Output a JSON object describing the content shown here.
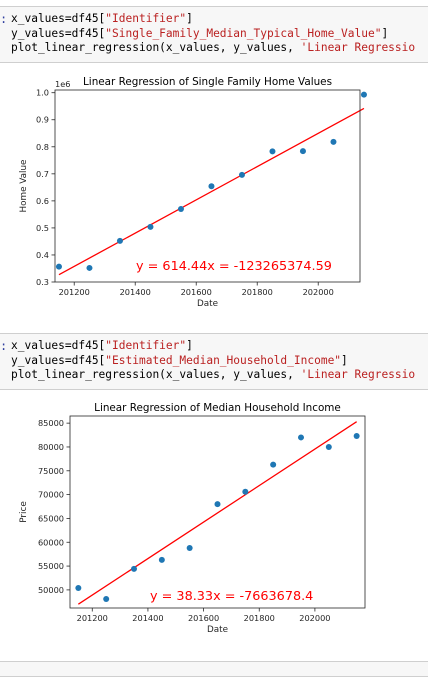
{
  "cells": [
    {
      "prompt": ":",
      "lines": [
        [
          {
            "t": "x_values=df45[",
            "c": ""
          },
          {
            "t": "\"Identifier\"",
            "c": "str"
          },
          {
            "t": "]",
            "c": ""
          }
        ],
        [
          {
            "t": "y_values=df45[",
            "c": ""
          },
          {
            "t": "\"Single_Family_Median_Typical_Home_Value\"",
            "c": "str"
          },
          {
            "t": "]",
            "c": ""
          }
        ],
        [
          {
            "t": "plot_linear_regression(x_values, y_values, ",
            "c": ""
          },
          {
            "t": "'Linear Regressio",
            "c": "str"
          }
        ]
      ]
    },
    {
      "prompt": ":",
      "lines": [
        [
          {
            "t": "x_values=df45[",
            "c": ""
          },
          {
            "t": "\"Identifier\"",
            "c": "str"
          },
          {
            "t": "]",
            "c": ""
          }
        ],
        [
          {
            "t": "y_values=df45[",
            "c": ""
          },
          {
            "t": "\"Estimated_Median_Household_Income\"",
            "c": "str"
          },
          {
            "t": "]",
            "c": ""
          }
        ],
        [
          {
            "t": "plot_linear_regression(x_values, y_values, ",
            "c": ""
          },
          {
            "t": "'Linear Regressio",
            "c": "str"
          }
        ]
      ]
    }
  ],
  "chart_data": [
    {
      "type": "scatter",
      "title": "Linear Regression of Single Family Home Values",
      "xlabel": "Date",
      "ylabel": "Home Value",
      "y_exponent_label": "1e6",
      "xlim": [
        201137,
        202137
      ],
      "ylim": [
        0.3,
        1.01
      ],
      "xticks": [
        201200,
        201400,
        201600,
        201800,
        202000
      ],
      "xtick_labels": [
        "201200",
        "201400",
        "201600",
        "201800",
        "202000"
      ],
      "yticks": [
        0.3,
        0.4,
        0.5,
        0.6,
        0.7,
        0.8,
        0.9,
        1.0
      ],
      "ytick_labels": [
        "0.3",
        "0.4",
        "0.5",
        "0.6",
        "0.7",
        "0.8",
        "0.9",
        "1.0"
      ],
      "x": [
        201150,
        201250,
        201350,
        201450,
        201550,
        201650,
        201750,
        201850,
        201950,
        202050,
        202150
      ],
      "y": [
        0.357,
        0.352,
        0.452,
        0.504,
        0.57,
        0.654,
        0.696,
        0.783,
        0.784,
        0.818,
        0.993
      ],
      "regression_line": {
        "x": [
          201150,
          202150
        ],
        "y": [
          0.327,
          0.942
        ],
        "color": "#ff0000"
      },
      "annotation": "y = 614.44x = -123265374.59",
      "point_color": "#1f77b4",
      "grid": false
    },
    {
      "type": "scatter",
      "title": "Linear Regression of Median Household Income",
      "xlabel": "Date",
      "ylabel": "Price",
      "xlim": [
        201120,
        202180
      ],
      "ylim": [
        46200,
        86500
      ],
      "xticks": [
        201200,
        201400,
        201600,
        201800,
        202000
      ],
      "xtick_labels": [
        "201200",
        "201400",
        "201600",
        "201800",
        "202000"
      ],
      "yticks": [
        50000,
        55000,
        60000,
        65000,
        70000,
        75000,
        80000,
        85000
      ],
      "ytick_labels": [
        "50000",
        "55000",
        "60000",
        "65000",
        "70000",
        "75000",
        "80000",
        "85000"
      ],
      "x": [
        201150,
        201250,
        201350,
        201450,
        201550,
        201650,
        201750,
        201850,
        201950,
        202050,
        202150
      ],
      "y": [
        50400,
        48100,
        54400,
        56300,
        58800,
        68000,
        70600,
        76300,
        82000,
        80000,
        82300
      ],
      "regression_line": {
        "x": [
          201150,
          202150
        ],
        "y": [
          47000,
          85300
        ],
        "color": "#ff0000"
      },
      "annotation": "y = 38.33x = -7663678.4",
      "point_color": "#1f77b4",
      "grid": false
    }
  ]
}
